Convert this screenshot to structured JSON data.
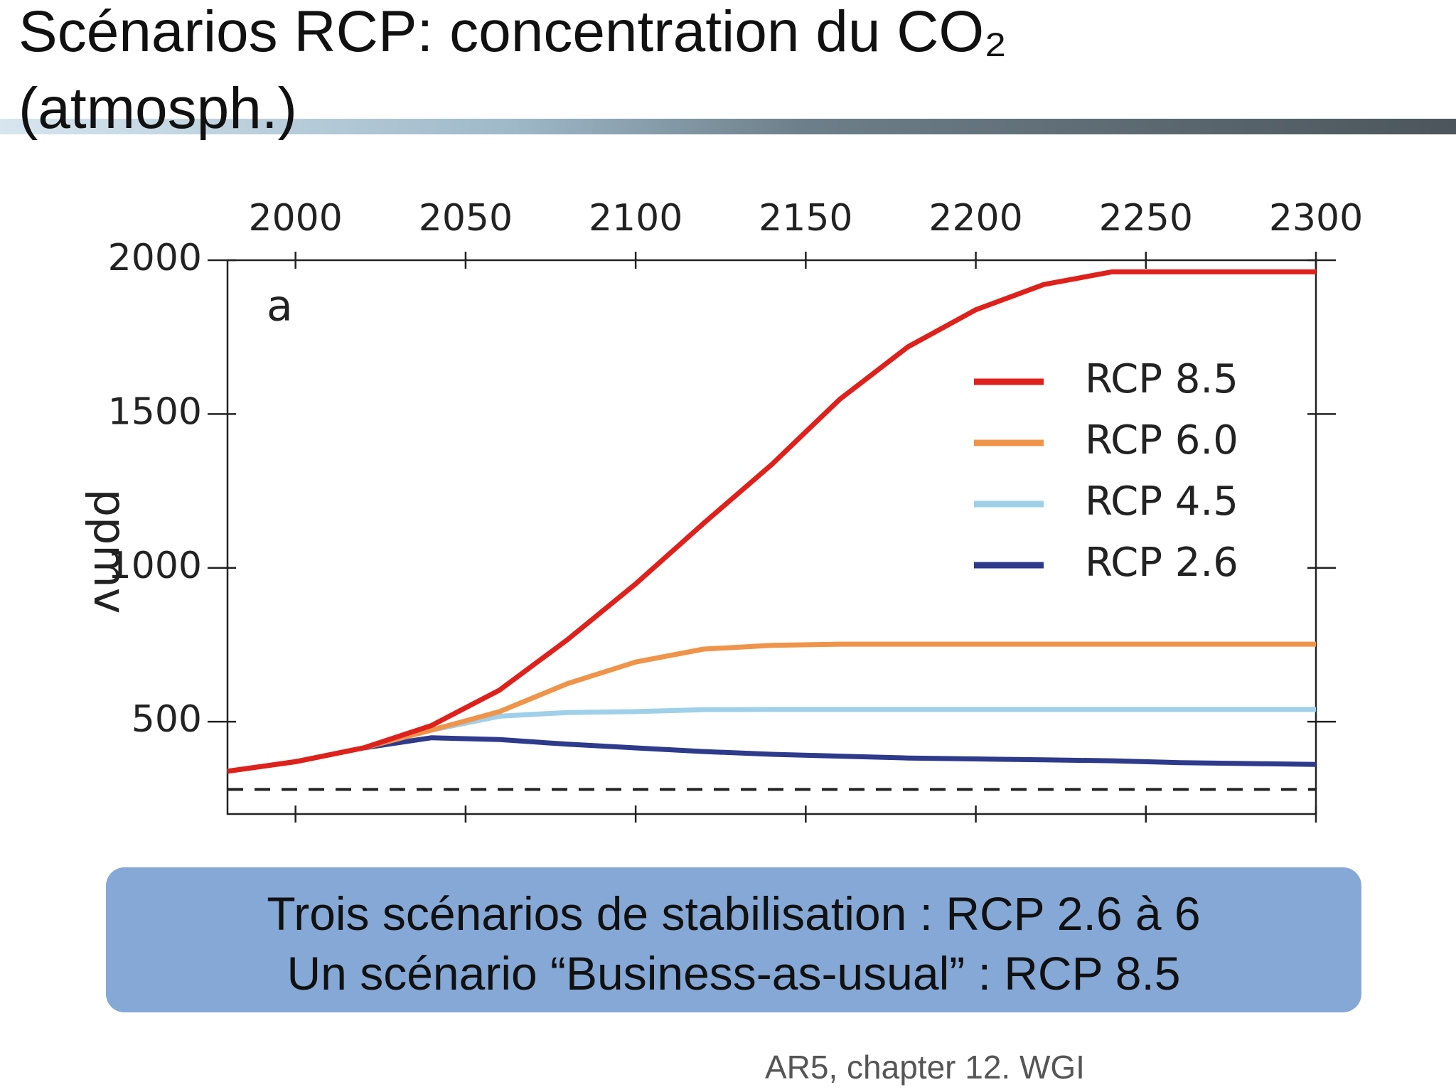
{
  "slide": {
    "title_lines": [
      "Scénarios RCP: concentration du CO₂",
      "(atmosph.)"
    ],
    "box_lines": [
      "Trois scénarios de stabilisation : RCP 2.6 à 6",
      "Un scénario “Business-as-usual” : RCP 8.5"
    ],
    "source": "AR5, chapter 12.  WGI"
  },
  "chart_data": {
    "type": "line",
    "panel_label": "a",
    "y_label": "ppmv",
    "x": [
      1980,
      2000,
      2020,
      2040,
      2060,
      2080,
      2100,
      2120,
      2140,
      2160,
      2180,
      2200,
      2220,
      2240,
      2260,
      2280,
      2300
    ],
    "series": [
      {
        "name": "RCP 8.5",
        "color": "#e0201b",
        "values": [
          339,
          370,
          415,
          488,
          603,
          767,
          948,
          1145,
          1336,
          1548,
          1718,
          1839,
          1921,
          1962,
          1962,
          1962,
          1962
        ]
      },
      {
        "name": "RCP 6.0",
        "color": "#f0944a",
        "values": [
          339,
          370,
          415,
          473,
          533,
          624,
          694,
          736,
          748,
          752,
          752,
          752,
          752,
          752,
          752,
          752,
          752
        ]
      },
      {
        "name": "RCP 4.5",
        "color": "#9fd0ea",
        "values": [
          339,
          370,
          415,
          473,
          518,
          530,
          533,
          539,
          540,
          540,
          540,
          540,
          540,
          540,
          540,
          540,
          540
        ]
      },
      {
        "name": "RCP 2.6",
        "color": "#2e3a8c",
        "values": [
          339,
          370,
          415,
          448,
          442,
          427,
          415,
          403,
          394,
          388,
          382,
          379,
          376,
          373,
          367,
          364,
          361
        ]
      }
    ],
    "reference_line": 280,
    "xlim": [
      1980,
      2300
    ],
    "xticks": [
      2000,
      2050,
      2100,
      2150,
      2200,
      2250,
      2300
    ],
    "ylim": [
      200,
      2000
    ],
    "yticks": [
      500,
      1000,
      1500,
      2000
    ],
    "legend": "upper right"
  }
}
